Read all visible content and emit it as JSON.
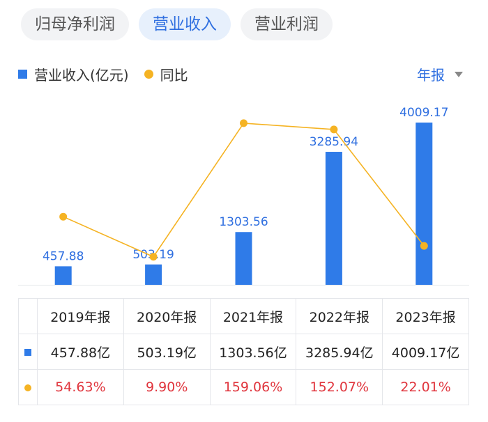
{
  "tabs": [
    {
      "label": "归母净利润",
      "active": false
    },
    {
      "label": "营业收入",
      "active": true
    },
    {
      "label": "营业利润",
      "active": false
    }
  ],
  "legend": {
    "revenue": "营业收入(亿元)",
    "yoy": "同比"
  },
  "period_selector": {
    "label": "年报",
    "icon": "chevron-down-icon"
  },
  "colors": {
    "accent": "#2f6fe0",
    "bar": "#2f7be8",
    "line": "#f5b323",
    "negative_red": "#e0353d"
  },
  "chart_data": {
    "type": "bar",
    "categories": [
      "2019年报",
      "2020年报",
      "2021年报",
      "2022年报",
      "2023年报"
    ],
    "series": [
      {
        "name": "营业收入(亿元)",
        "type": "bar",
        "values": [
          457.88,
          503.19,
          1303.56,
          3285.94,
          4009.17
        ]
      },
      {
        "name": "同比",
        "type": "line",
        "values": [
          54.63,
          9.9,
          159.06,
          152.07,
          22.01
        ]
      }
    ],
    "bar_labels": [
      "457.88",
      "503.19",
      "1303.56",
      "3285.94",
      "4009.17"
    ],
    "ylim": [
      0,
      4009.17
    ],
    "grid": false,
    "legend": "top-left"
  },
  "table": {
    "headers": [
      "2019年报",
      "2020年报",
      "2021年报",
      "2022年报",
      "2023年报"
    ],
    "revenue_row": [
      "457.88亿",
      "503.19亿",
      "1303.56亿",
      "3285.94亿",
      "4009.17亿"
    ],
    "yoy_row": [
      "54.63%",
      "9.90%",
      "159.06%",
      "152.07%",
      "22.01%"
    ]
  }
}
